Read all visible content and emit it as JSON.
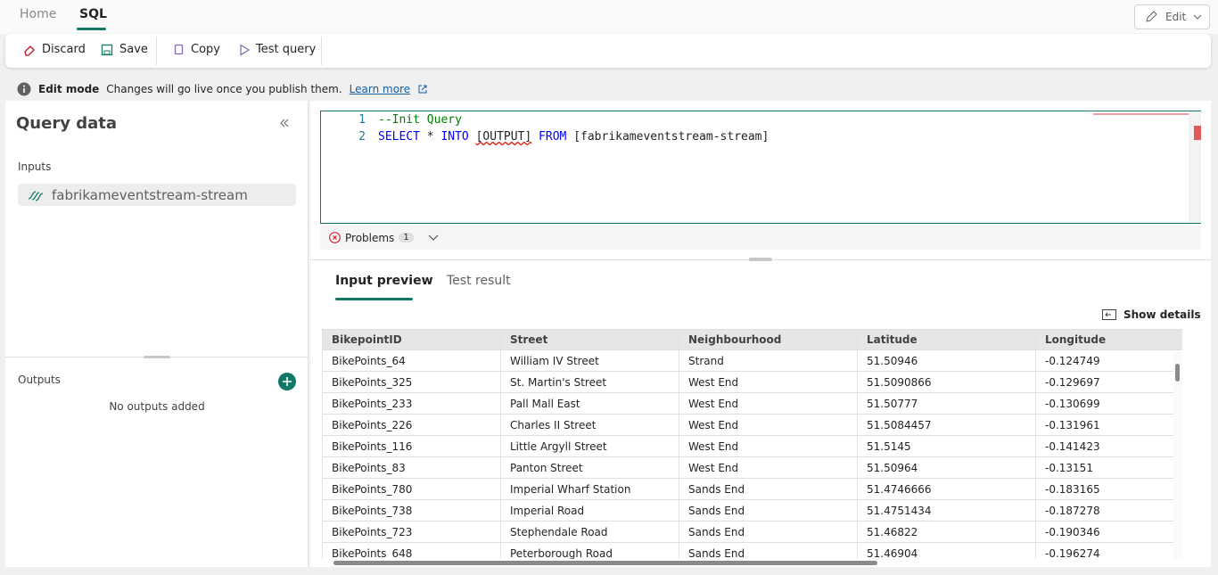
{
  "tabs": [
    "Home",
    "SQL"
  ],
  "edit_button": "Edit",
  "toolbar": [
    "Discard",
    "Save",
    "Copy",
    "Test query"
  ],
  "banner": {
    "title": "Edit mode",
    "message": "Changes will go live once you publish them.",
    "link": "Learn more"
  },
  "sidebar": {
    "title": "Query data",
    "inputs_label": "Inputs",
    "inputs": [
      "fabrikameventstream-stream"
    ],
    "outputs_label": "Outputs",
    "outputs_empty": "No outputs added"
  },
  "editor": {
    "line_numbers": [
      1,
      2
    ],
    "lines": [
      [
        "--Init Query"
      ],
      [
        "SELECT",
        "*",
        "INTO",
        "[OUTPUT]",
        "FROM",
        "[fabrikameventstream-stream]"
      ]
    ]
  },
  "problems": {
    "label": "Problems",
    "count": 1
  },
  "preview_tabs": [
    "Input preview",
    "Test result"
  ],
  "show_details": "Show details",
  "table": {
    "columns": [
      "BikepointID",
      "Street",
      "Neighbourhood",
      "Latitude",
      "Longitude"
    ],
    "rows": [
      [
        "BikePoints_64",
        "William IV Street",
        "Strand",
        51.50946,
        -0.124749
      ],
      [
        "BikePoints_325",
        "St. Martin's Street",
        "West End",
        51.5090866,
        -0.129697
      ],
      [
        "BikePoints_233",
        "Pall Mall East",
        "West End",
        51.50777,
        -0.130699
      ],
      [
        "BikePoints_226",
        "Charles II Street",
        "West End",
        51.5084457,
        -0.131961
      ],
      [
        "BikePoints_116",
        "Little Argyll Street",
        "West End",
        51.5145,
        -0.141423
      ],
      [
        "BikePoints_83",
        "Panton Street",
        "West End",
        51.50964,
        -0.13151
      ],
      [
        "BikePoints_780",
        "Imperial Wharf Station",
        "Sands End",
        51.4746666,
        -0.183165
      ],
      [
        "BikePoints_738",
        "Imperial Road",
        "Sands End",
        51.4751434,
        -0.187278
      ],
      [
        "BikePoints_723",
        "Stephendale Road",
        "Sands End",
        51.46822,
        -0.190346
      ],
      [
        "BikePoints_648",
        "Peterborough Road",
        "Sands End",
        51.46904,
        -0.196274
      ]
    ]
  }
}
